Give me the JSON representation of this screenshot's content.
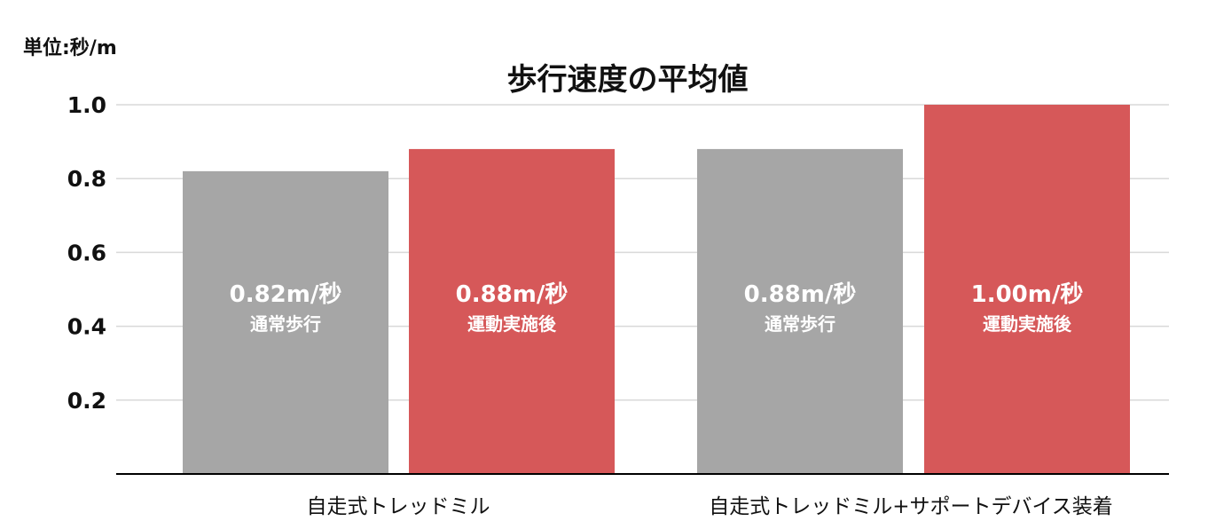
{
  "unit_label": "単位:秒/m",
  "chart_data": {
    "type": "bar",
    "title": "歩行速度の平均値",
    "xlabel": "",
    "ylabel": "",
    "ylim": [
      0,
      1.0
    ],
    "yticks": [
      0.2,
      0.4,
      0.6,
      0.8,
      1.0
    ],
    "ytick_labels": [
      "0.2",
      "0.4",
      "0.6",
      "0.8",
      "1.0"
    ],
    "grid": true,
    "legend": "none",
    "groups": [
      {
        "label": "自走式トレッドミル",
        "bars": [
          {
            "value": 0.82,
            "value_label": "0.82m/秒",
            "condition": "通常歩行",
            "color": "#a6a6a6"
          },
          {
            "value": 0.88,
            "value_label": "0.88m/秒",
            "condition": "運動実施後",
            "color": "#d65859"
          }
        ]
      },
      {
        "label": "自走式トレッドミル+サポートデバイス装着",
        "bars": [
          {
            "value": 0.88,
            "value_label": "0.88m/秒",
            "condition": "通常歩行",
            "color": "#a6a6a6"
          },
          {
            "value": 1.0,
            "value_label": "1.00m/秒",
            "condition": "運動実施後",
            "color": "#d65859"
          }
        ]
      }
    ],
    "colors": {
      "normal": "#a6a6a6",
      "after_exercise": "#d65859",
      "gridline": "#d9d9d9",
      "axis": "#000000",
      "bar_text": "#ffffff"
    }
  }
}
